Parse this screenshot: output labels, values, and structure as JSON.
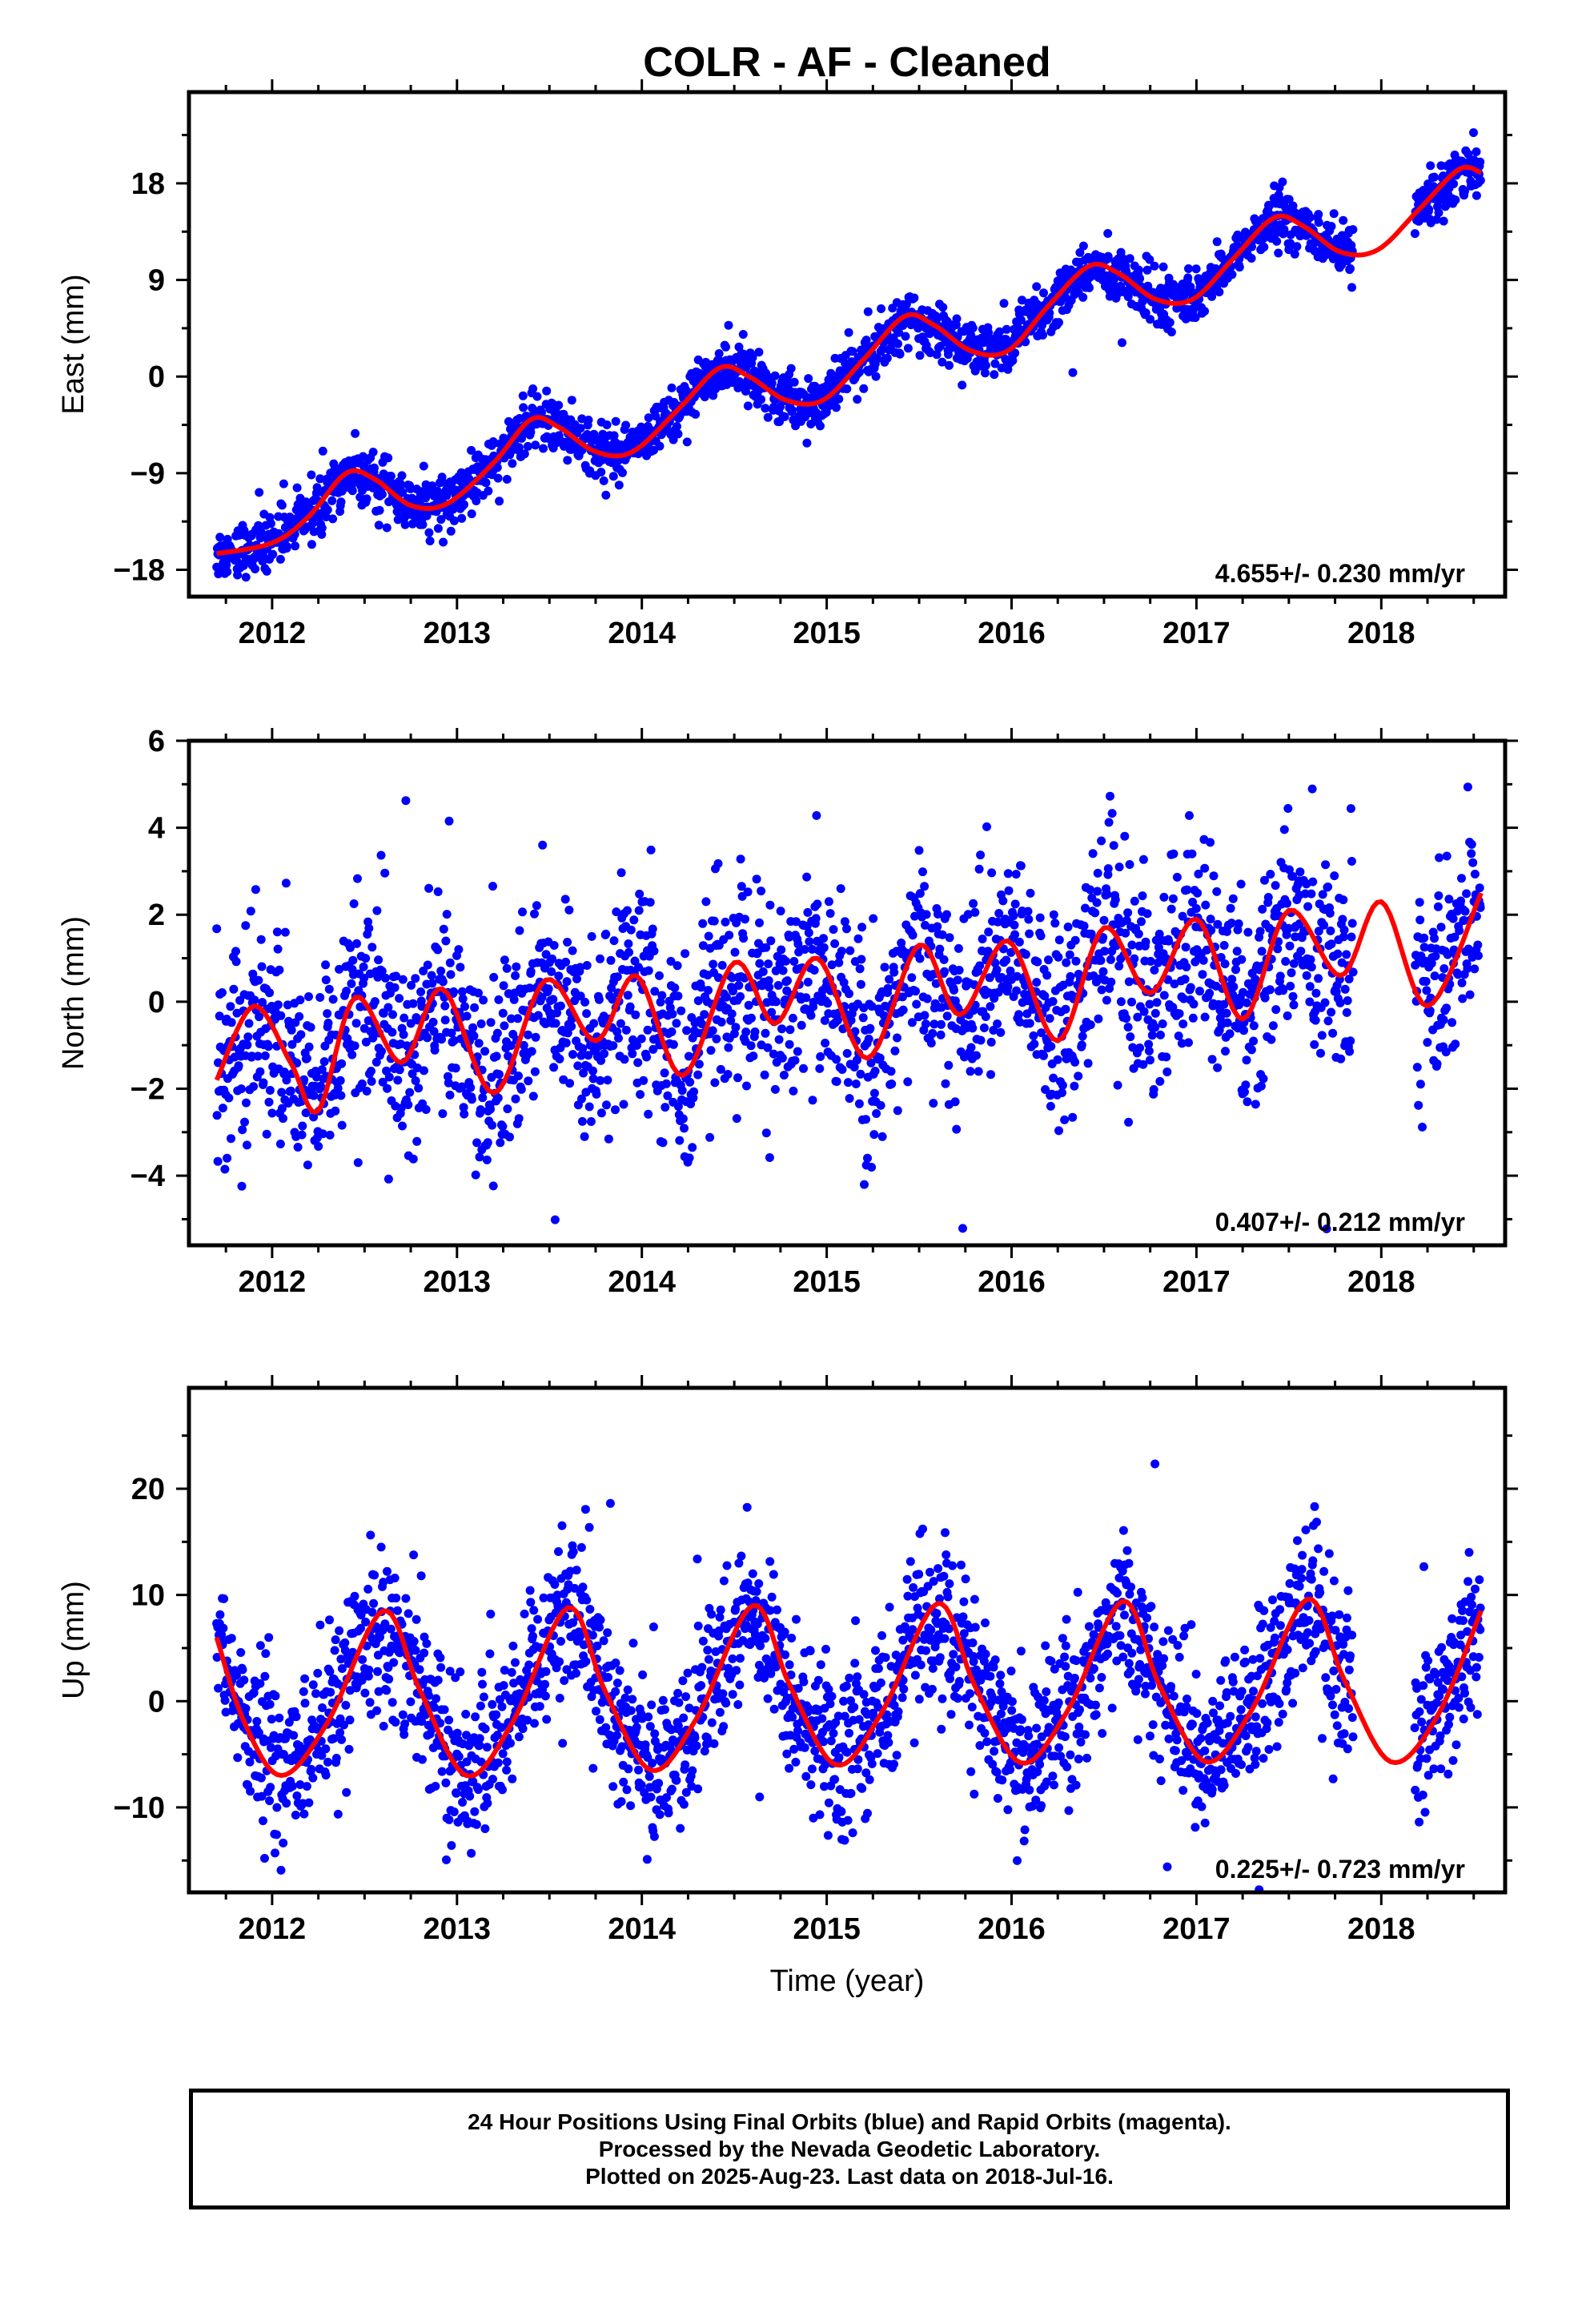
{
  "title": "COLR  - AF - Cleaned",
  "xlabel": "Time (year)",
  "caption": [
    "24 Hour Positions Using Final Orbits (blue) and Rapid Orbits (magenta).",
    "Processed by the Nevada Geodetic Laboratory.",
    "Plotted on 2025-Aug-23. Last data on 2018-Jul-16."
  ],
  "colors": {
    "observed": "#0000ff",
    "model": "#ff0000",
    "frame": "#000000"
  },
  "chart_data": [
    {
      "type": "scatter",
      "component": "East",
      "ylabel": "East (mm)",
      "xlim": [
        2011.55,
        2018.67
      ],
      "ylim": [
        -20.5,
        26.5
      ],
      "xticks": [
        2012,
        2013,
        2014,
        2015,
        2016,
        2017,
        2018
      ],
      "yticks": [
        18,
        9,
        0,
        -9,
        -18
      ],
      "ytick_labels": [
        "18",
        "9",
        "0",
        "−9",
        "−18"
      ],
      "rate_label": "4.655+/- 0.230 mm/yr",
      "data_span": [
        2011.7,
        2018.54
      ],
      "gap": [
        2017.85,
        2018.18
      ],
      "series": [
        {
          "name": "",
          "model_points": [
            [
              2011.7,
              -16.5
            ],
            [
              2012.0,
              -15.5
            ],
            [
              2012.2,
              -13.0
            ],
            [
              2012.4,
              -9.0
            ],
            [
              2012.55,
              -9.5
            ],
            [
              2012.75,
              -12.0
            ],
            [
              2012.95,
              -11.8
            ],
            [
              2013.2,
              -8.0
            ],
            [
              2013.4,
              -4.0
            ],
            [
              2013.55,
              -4.7
            ],
            [
              2013.75,
              -7.0
            ],
            [
              2013.95,
              -7.0
            ],
            [
              2014.2,
              -3.0
            ],
            [
              2014.42,
              0.8
            ],
            [
              2014.58,
              0.0
            ],
            [
              2014.78,
              -2.2
            ],
            [
              2014.98,
              -2.2
            ],
            [
              2015.2,
              1.6
            ],
            [
              2015.42,
              5.6
            ],
            [
              2015.58,
              4.8
            ],
            [
              2015.78,
              2.4
            ],
            [
              2015.98,
              2.4
            ],
            [
              2016.2,
              6.6
            ],
            [
              2016.42,
              10.3
            ],
            [
              2016.58,
              9.6
            ],
            [
              2016.78,
              7.2
            ],
            [
              2016.98,
              7.2
            ],
            [
              2017.2,
              11.0
            ],
            [
              2017.42,
              14.8
            ],
            [
              2017.58,
              14.0
            ],
            [
              2017.78,
              11.6
            ],
            [
              2017.98,
              11.8
            ],
            [
              2018.2,
              15.5
            ],
            [
              2018.42,
              19.3
            ],
            [
              2018.54,
              19.0
            ]
          ]
        }
      ],
      "noise_sd": 1.2
    },
    {
      "type": "scatter",
      "component": "North",
      "ylabel": "North (mm)",
      "xlim": [
        2011.55,
        2018.67
      ],
      "ylim": [
        -5.6,
        6.0
      ],
      "xticks": [
        2012,
        2013,
        2014,
        2015,
        2016,
        2017,
        2018
      ],
      "yticks": [
        6,
        4,
        2,
        0,
        -2,
        -4
      ],
      "ytick_labels": [
        "6",
        "4",
        "2",
        "0",
        "−2",
        "−4"
      ],
      "rate_label": "0.407+/- 0.212 mm/yr",
      "data_span": [
        2011.7,
        2018.54
      ],
      "gap": [
        2017.85,
        2018.18
      ],
      "series": [
        {
          "name": "",
          "model_points": [
            [
              2011.7,
              -1.8
            ],
            [
              2011.9,
              -0.1
            ],
            [
              2012.1,
              -1.4
            ],
            [
              2012.25,
              -2.5
            ],
            [
              2012.45,
              0.1
            ],
            [
              2012.7,
              -1.4
            ],
            [
              2012.92,
              0.3
            ],
            [
              2013.2,
              -2.1
            ],
            [
              2013.48,
              0.5
            ],
            [
              2013.75,
              -0.9
            ],
            [
              2013.97,
              0.6
            ],
            [
              2014.22,
              -1.7
            ],
            [
              2014.5,
              0.9
            ],
            [
              2014.72,
              -0.5
            ],
            [
              2014.95,
              1.0
            ],
            [
              2015.22,
              -1.3
            ],
            [
              2015.5,
              1.3
            ],
            [
              2015.72,
              -0.3
            ],
            [
              2015.98,
              1.4
            ],
            [
              2016.25,
              -0.9
            ],
            [
              2016.5,
              1.7
            ],
            [
              2016.75,
              0.2
            ],
            [
              2017.0,
              1.9
            ],
            [
              2017.25,
              -0.4
            ],
            [
              2017.5,
              2.1
            ],
            [
              2017.78,
              0.6
            ],
            [
              2018.0,
              2.3
            ],
            [
              2018.25,
              -0.1
            ],
            [
              2018.54,
              2.5
            ]
          ]
        }
      ],
      "noise_sd": 1.2
    },
    {
      "type": "scatter",
      "component": "Up",
      "ylabel": "Up (mm)",
      "xlim": [
        2011.55,
        2018.67
      ],
      "ylim": [
        -18,
        29.5
      ],
      "xticks": [
        2012,
        2013,
        2014,
        2015,
        2016,
        2017,
        2018
      ],
      "yticks": [
        20,
        10,
        0,
        -10
      ],
      "ytick_labels": [
        "20",
        "10",
        "0",
        "−10"
      ],
      "rate_label": "0.225+/- 0.723 mm/yr",
      "data_span": [
        2011.7,
        2018.54
      ],
      "gap": [
        2017.85,
        2018.18
      ],
      "series": [
        {
          "name": "",
          "model_points": [
            [
              2011.7,
              6.0
            ],
            [
              2011.85,
              -2.0
            ],
            [
              2012.05,
              -7.0
            ],
            [
              2012.3,
              -2.0
            ],
            [
              2012.6,
              8.5
            ],
            [
              2012.8,
              1.0
            ],
            [
              2013.05,
              -7.0
            ],
            [
              2013.3,
              -2.0
            ],
            [
              2013.6,
              8.8
            ],
            [
              2013.8,
              1.0
            ],
            [
              2014.05,
              -6.5
            ],
            [
              2014.3,
              -1.5
            ],
            [
              2014.6,
              9.0
            ],
            [
              2014.8,
              1.5
            ],
            [
              2015.05,
              -6.0
            ],
            [
              2015.3,
              -1.0
            ],
            [
              2015.6,
              9.2
            ],
            [
              2015.8,
              1.5
            ],
            [
              2016.05,
              -5.8
            ],
            [
              2016.3,
              -1.0
            ],
            [
              2016.6,
              9.4
            ],
            [
              2016.8,
              1.5
            ],
            [
              2017.05,
              -5.7
            ],
            [
              2017.3,
              -0.8
            ],
            [
              2017.6,
              9.6
            ],
            [
              2017.8,
              2.0
            ],
            [
              2018.05,
              -5.7
            ],
            [
              2018.3,
              -1.5
            ],
            [
              2018.54,
              8.5
            ]
          ]
        }
      ],
      "noise_sd": 3.8
    }
  ]
}
